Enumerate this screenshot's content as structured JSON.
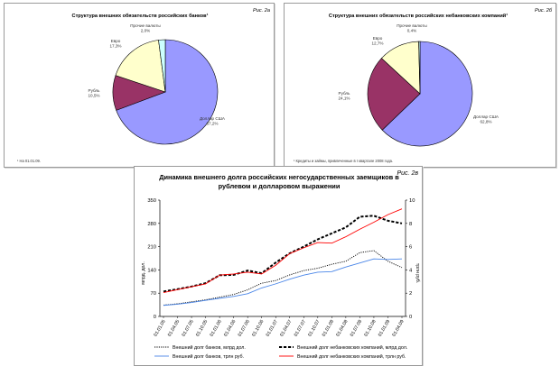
{
  "chart_data": [
    {
      "type": "pie",
      "title": "Структура внешних обязательств российских банков¹",
      "figure_label": "Рис. 2а",
      "footnote": "¹ На 01.01.09.",
      "slices": [
        {
          "label": "Доллар США",
          "value": 67.2,
          "value_label": "67,2%",
          "color": "#9999ff"
        },
        {
          "label": "Рубль",
          "value": 10.5,
          "value_label": "10,5%",
          "color": "#993366"
        },
        {
          "label": "Евро",
          "value": 17.3,
          "value_label": "17,3%",
          "color": "#ffffcc"
        },
        {
          "label": "Прочие валюты",
          "value": 2.0,
          "value_label": "2,0%",
          "color": "#ccffff"
        }
      ]
    },
    {
      "type": "pie",
      "title": "Структура внешних обязательств российских небанковских компаний¹",
      "figure_label": "Рис. 2б",
      "footnote": "¹ Кредиты и займы, привлеченные в I квартале 2008 года.",
      "slices": [
        {
          "label": "Доллар США",
          "value": 62.8,
          "value_label": "62,8%",
          "color": "#9999ff"
        },
        {
          "label": "Рубль",
          "value": 24.1,
          "value_label": "24,1%",
          "color": "#993366"
        },
        {
          "label": "Евро",
          "value": 12.7,
          "value_label": "12,7%",
          "color": "#ffffcc"
        },
        {
          "label": "Прочие валюты",
          "value": 0.4,
          "value_label": "0,4%",
          "color": "#ccffff"
        }
      ]
    },
    {
      "type": "line",
      "title": "Динамика внешнего долга российских негосударственных заемщиков в рублевом и долларовом выражении",
      "figure_label": "Рис. 2в",
      "ylabel_left": "млрд. дол.",
      "ylabel_right": "трлн руб.",
      "ylim_left": [
        0,
        350
      ],
      "yticks_left": [
        "0",
        "70",
        "140",
        "210",
        "280",
        "350"
      ],
      "ylim_right": [
        0,
        10
      ],
      "yticks_right": [
        "0",
        "2",
        "4",
        "6",
        "8",
        "10"
      ],
      "categories": [
        "01.01.05",
        "01.04.05",
        "01.07.05",
        "01.10.05",
        "01.01.06",
        "01.04.06",
        "01.07.06",
        "01.10.06",
        "01.01.07",
        "01.04.07",
        "01.07.07",
        "01.10.07",
        "01.01.08",
        "01.04.08",
        "01.07.08",
        "01.10.08",
        "01.01.09",
        "01.04.09"
      ],
      "series": [
        {
          "name": "Внешний долг банков, млрд дол.",
          "axis": "left",
          "color": "#000000",
          "style": "dotted",
          "values": [
            34,
            38,
            44,
            50,
            58,
            66,
            80,
            100,
            108,
            125,
            138,
            145,
            157,
            166,
            192,
            198,
            166,
            147
          ]
        },
        {
          "name": "Внешний долг небанковских компаний, млрд дол.",
          "axis": "left",
          "color": "#000000",
          "style": "dashed-thick",
          "values": [
            75,
            82,
            90,
            100,
            124,
            125,
            138,
            130,
            162,
            190,
            210,
            232,
            250,
            268,
            300,
            303,
            288,
            280
          ]
        },
        {
          "name": "Внешний долг банков, трлн руб.",
          "axis": "right",
          "color": "#4a86e8",
          "style": "solid",
          "values": [
            0.95,
            1.05,
            1.2,
            1.38,
            1.56,
            1.72,
            1.95,
            2.45,
            2.8,
            3.2,
            3.55,
            3.8,
            3.85,
            4.25,
            4.6,
            4.95,
            4.9,
            4.95
          ]
        },
        {
          "name": "Внешний долг небанковских компаний, трлн руб.",
          "axis": "right",
          "color": "#ff0000",
          "style": "solid",
          "values": [
            2.05,
            2.3,
            2.55,
            2.8,
            3.55,
            3.65,
            3.8,
            3.65,
            4.4,
            5.4,
            5.9,
            6.35,
            6.3,
            6.85,
            7.5,
            8.1,
            8.75,
            9.25
          ]
        }
      ],
      "legend_placement": "bottom",
      "grid": false
    }
  ]
}
